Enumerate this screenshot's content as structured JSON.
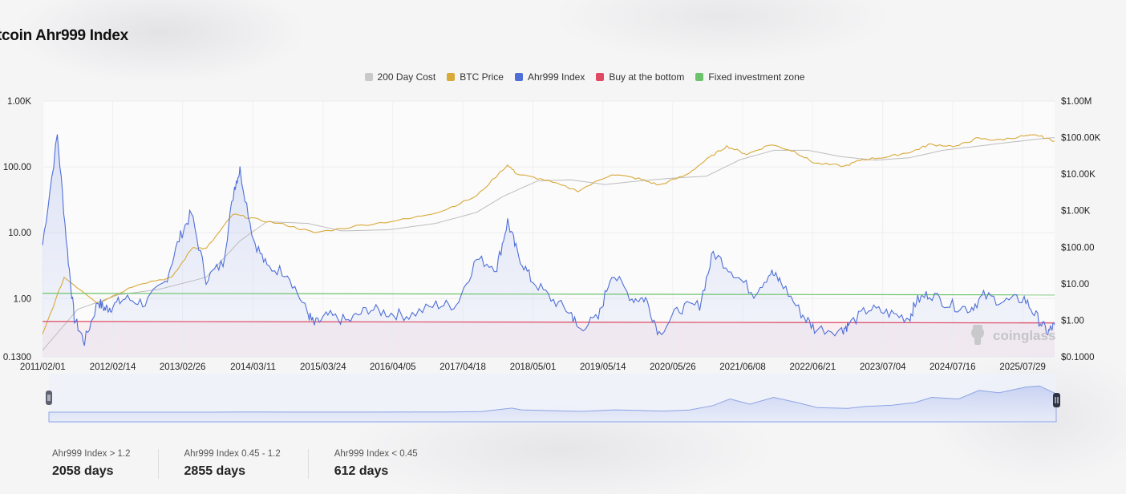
{
  "page": {
    "title": "tcoin Ahr999 Index"
  },
  "legend": [
    {
      "label": "200 Day Cost",
      "color": "#c9c9c9"
    },
    {
      "label": "BTC Price",
      "color": "#d9a93a"
    },
    {
      "label": "Ahr999 Index",
      "color": "#4f6fd8"
    },
    {
      "label": "Buy at the bottom",
      "color": "#e04a64"
    },
    {
      "label": "Fixed investment zone",
      "color": "#6cc36c"
    }
  ],
  "watermark": "coinglass",
  "stats": [
    {
      "label": "Ahr999 Index > 1.2",
      "value": "2058 days"
    },
    {
      "label": "Ahr999 Index 0.45 - 1.2",
      "value": "2855 days"
    },
    {
      "label": "Ahr999 Index < 0.45",
      "value": "612 days"
    }
  ],
  "chart_data": {
    "type": "line",
    "title": "tcoin Ahr999 Index",
    "x_ticks": [
      "2011/02/01",
      "2012/02/14",
      "2013/02/26",
      "2014/03/11",
      "2015/03/24",
      "2016/04/05",
      "2017/04/18",
      "2018/05/01",
      "2019/05/14",
      "2020/05/26",
      "2021/06/08",
      "2022/06/21",
      "2023/07/04",
      "2024/07/16",
      "2025/07/29"
    ],
    "y_left": {
      "scale": "log",
      "ticks": [
        "1.00K",
        "100.00",
        "10.00",
        "1.00",
        "0.1300"
      ],
      "range": [
        0.13,
        1000
      ]
    },
    "y_right": {
      "scale": "log",
      "ticks": [
        "$1.00M",
        "$100.00K",
        "$10.00K",
        "$1.00K",
        "$100.00",
        "$10.00",
        "$1.00",
        "$0.1000"
      ],
      "range": [
        0.1,
        1000000
      ]
    },
    "thresholds": [
      {
        "name": "Fixed investment zone",
        "value": 1.2,
        "color": "#6cc36c"
      },
      {
        "name": "Buy at the bottom",
        "value": 0.45,
        "color": "#e04a64"
      }
    ],
    "series": [
      {
        "name": "Ahr999 Index",
        "axis": "left",
        "color": "#4f6fd8",
        "x": [
          2011.08,
          2011.3,
          2011.45,
          2011.55,
          2011.7,
          2011.9,
          2012.0,
          2012.1,
          2012.3,
          2012.6,
          2012.9,
          2013.1,
          2013.28,
          2013.5,
          2013.75,
          2013.92,
          2014.0,
          2014.2,
          2014.4,
          2014.7,
          2015.0,
          2015.1,
          2015.3,
          2015.6,
          2015.9,
          2016.2,
          2016.5,
          2016.9,
          2017.2,
          2017.5,
          2017.8,
          2017.96,
          2018.1,
          2018.3,
          2018.6,
          2018.9,
          2019.0,
          2019.3,
          2019.5,
          2019.8,
          2020.0,
          2020.2,
          2020.5,
          2020.8,
          2021.0,
          2021.3,
          2021.6,
          2021.85,
          2022.0,
          2022.3,
          2022.5,
          2022.9,
          2023.0,
          2023.3,
          2023.6,
          2023.9,
          2024.0,
          2024.2,
          2024.5,
          2024.8,
          2025.0,
          2025.3,
          2025.6,
          2025.8,
          2025.95,
          2026.05
        ],
        "y": [
          6.5,
          300,
          5.0,
          0.5,
          0.22,
          0.9,
          0.7,
          0.75,
          1.0,
          0.85,
          1.8,
          8.0,
          20,
          2.0,
          3.5,
          50,
          90,
          8.0,
          3.0,
          2.5,
          0.6,
          0.4,
          0.55,
          0.45,
          0.7,
          0.6,
          0.55,
          0.8,
          0.8,
          4.0,
          3.0,
          15.0,
          5.0,
          2.0,
          1.0,
          0.6,
          0.35,
          0.5,
          2.5,
          1.0,
          1.0,
          0.3,
          0.7,
          0.8,
          5.0,
          2.5,
          1.2,
          2.5,
          1.8,
          0.6,
          0.35,
          0.33,
          0.4,
          0.7,
          0.6,
          0.5,
          0.9,
          1.2,
          0.8,
          0.7,
          1.1,
          0.9,
          1.0,
          0.5,
          0.3,
          0.4
        ]
      },
      {
        "name": "BTC Price",
        "axis": "right",
        "color": "#d9a93a",
        "x": [
          2011.08,
          2011.4,
          2011.9,
          2012.5,
          2013.0,
          2013.3,
          2013.5,
          2013.9,
          2014.2,
          2014.7,
          2015.1,
          2015.8,
          2016.5,
          2017.0,
          2017.5,
          2017.96,
          2018.1,
          2018.5,
          2019.0,
          2019.5,
          2019.9,
          2020.2,
          2020.6,
          2020.95,
          2021.2,
          2021.5,
          2021.85,
          2022.2,
          2022.5,
          2022.95,
          2023.2,
          2023.6,
          2023.95,
          2024.2,
          2024.6,
          2024.9,
          2025.2,
          2025.6,
          2025.8,
          2026.05
        ],
        "y": [
          0.4,
          15,
          3,
          10,
          15,
          100,
          90,
          800,
          600,
          400,
          250,
          400,
          600,
          1000,
          2500,
          18000,
          10000,
          7000,
          3500,
          10000,
          7500,
          5000,
          9500,
          29000,
          58000,
          35000,
          65000,
          42000,
          20000,
          16500,
          25000,
          30000,
          42000,
          65000,
          58000,
          95000,
          85000,
          110000,
          115000,
          80000
        ]
      },
      {
        "name": "200 Day Cost",
        "axis": "right",
        "color": "#bdbdbd",
        "x": [
          2011.08,
          2011.6,
          2012.2,
          2012.8,
          2013.5,
          2014.0,
          2014.4,
          2015.0,
          2015.5,
          2016.2,
          2016.9,
          2017.5,
          2017.9,
          2018.4,
          2018.9,
          2019.4,
          2019.9,
          2020.4,
          2020.9,
          2021.4,
          2021.9,
          2022.4,
          2022.9,
          2023.4,
          2023.9,
          2024.4,
          2024.9,
          2025.4,
          2025.9,
          2026.05
        ],
        "y": [
          0.15,
          2,
          5,
          7,
          15,
          150,
          500,
          450,
          280,
          300,
          450,
          900,
          2500,
          6500,
          7000,
          5200,
          6500,
          7800,
          8800,
          25000,
          45000,
          45000,
          30000,
          24000,
          28000,
          45000,
          58000,
          75000,
          95000,
          100000
        ]
      }
    ]
  }
}
